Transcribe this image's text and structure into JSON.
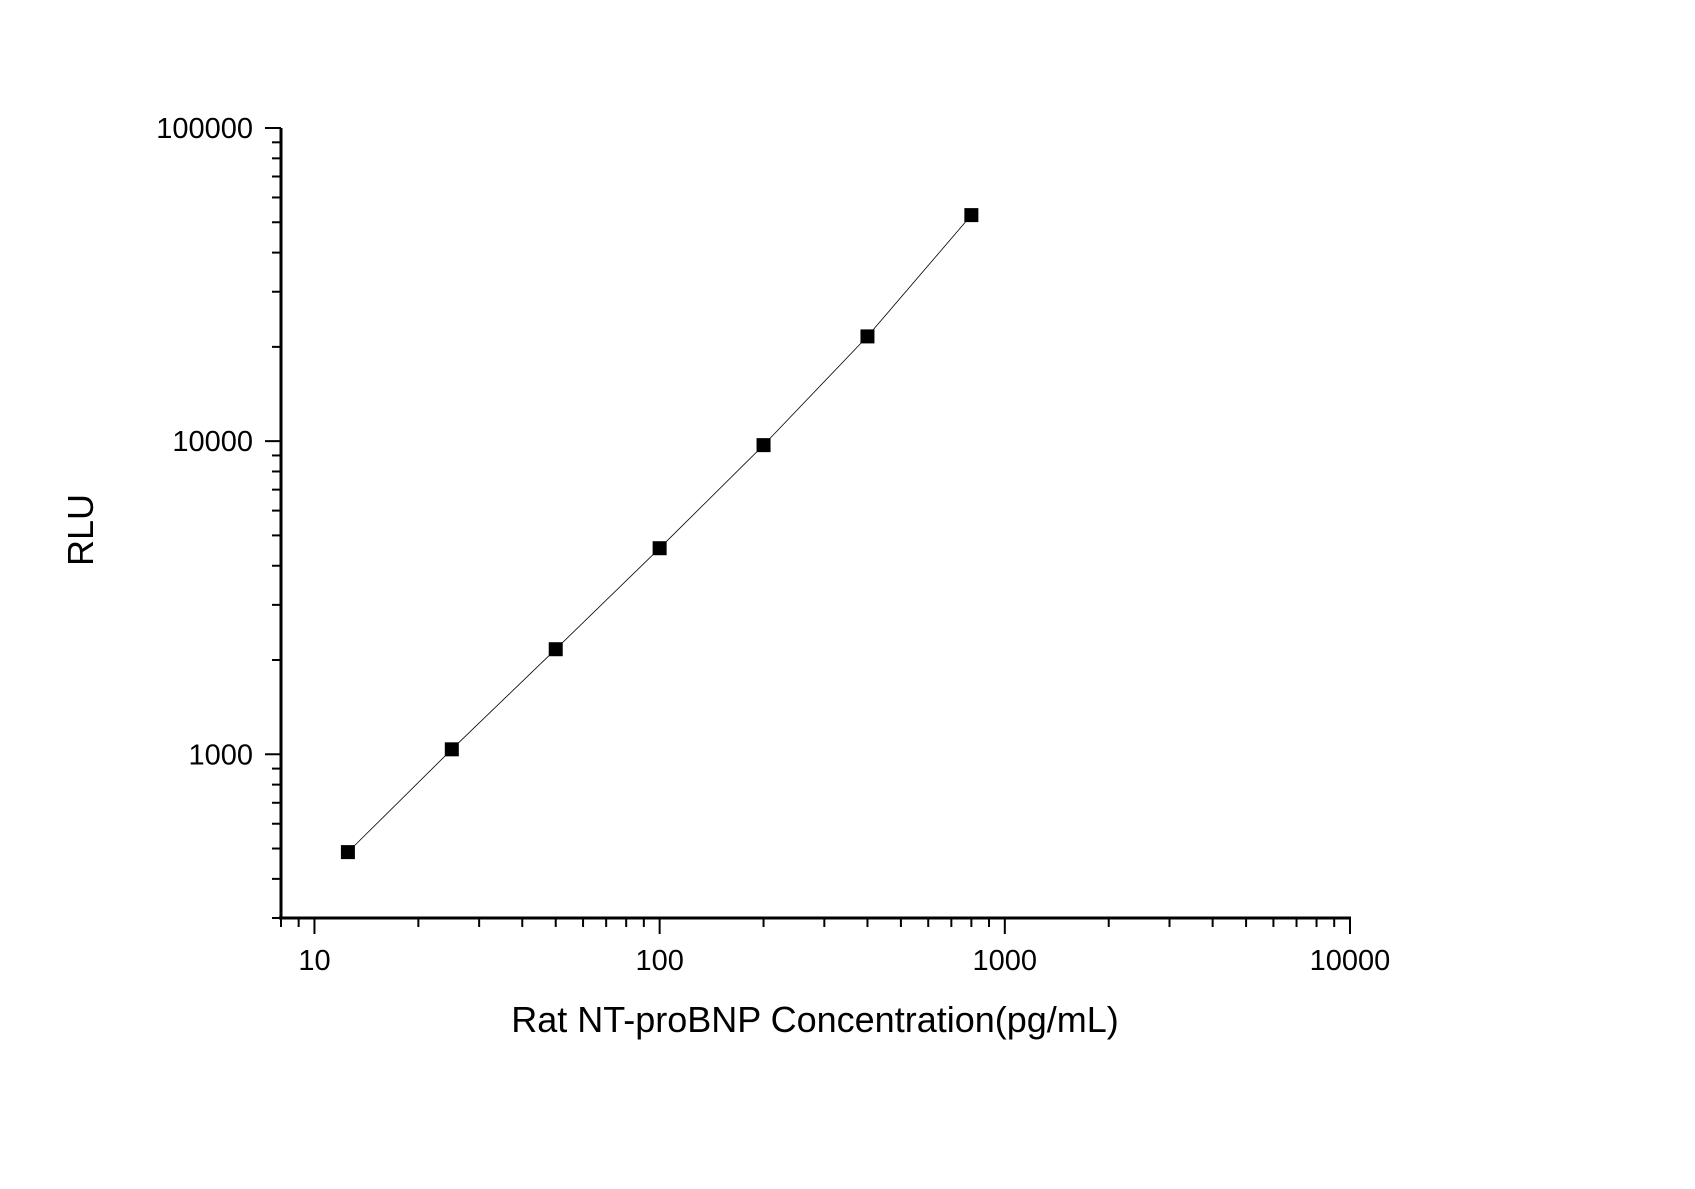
{
  "chart_data": {
    "type": "scatter",
    "title": "",
    "xlabel": "Rat NT-proBNP Concentration(pg/mL)",
    "ylabel": "RLU",
    "x_scale": "log",
    "y_scale": "log",
    "xlim": [
      8,
      10000
    ],
    "ylim": [
      300,
      100000
    ],
    "x_ticks": [
      "10",
      "100",
      "1000",
      "10000"
    ],
    "y_ticks": [
      "1000",
      "10000",
      "100000"
    ],
    "grid": false,
    "marker": "square",
    "line": "connecting curve",
    "colors": {
      "marker": "#000000",
      "line": "#000000",
      "axis": "#000000"
    },
    "series": [
      {
        "x": [
          12.5,
          25,
          50,
          100,
          200,
          400,
          800
        ],
        "y": [
          487,
          1037,
          2165,
          4550,
          9710,
          21600,
          52700
        ]
      }
    ]
  }
}
